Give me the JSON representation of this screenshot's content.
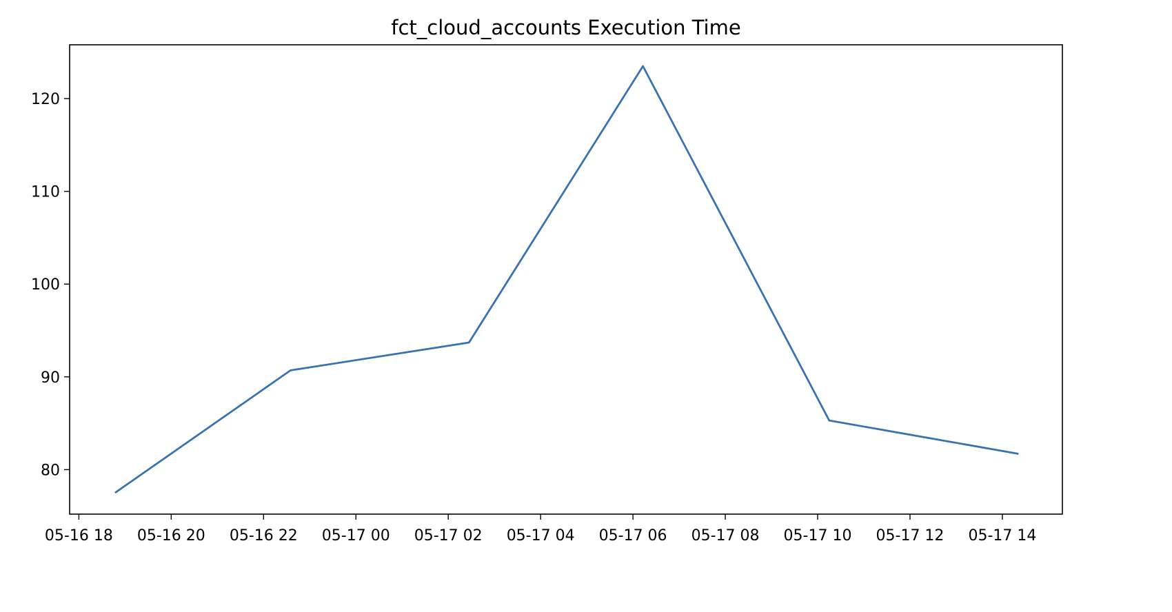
{
  "chart_data": {
    "type": "line",
    "title": "fct_cloud_accounts Execution Time",
    "xlabel": "",
    "ylabel": "",
    "x_format": "MM-DD HH",
    "xlim": [
      "05-16 17:48",
      "05-17 15:18"
    ],
    "ylim": [
      75.2,
      125.8
    ],
    "x_ticks": [
      "05-16 18",
      "05-16 20",
      "05-16 22",
      "05-17 00",
      "05-17 02",
      "05-17 04",
      "05-17 06",
      "05-17 08",
      "05-17 10",
      "05-17 12",
      "05-17 14"
    ],
    "y_ticks": [
      80,
      90,
      100,
      110,
      120
    ],
    "grid": false,
    "legend": "none",
    "series": [
      {
        "color": "#3a72b0",
        "x": [
          "05-16 18:47",
          "05-16 22:35",
          "05-17 02:27",
          "05-17 06:13",
          "05-17 10:15",
          "05-17 14:21"
        ],
        "y": [
          77.5,
          90.7,
          93.7,
          123.5,
          85.3,
          81.7
        ]
      }
    ]
  }
}
